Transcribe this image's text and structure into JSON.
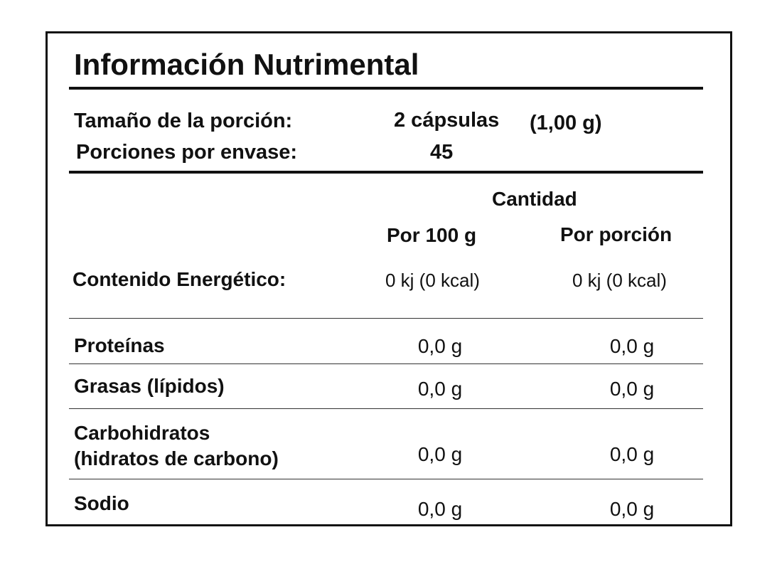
{
  "title": "Información Nutrimental",
  "serving": {
    "size_label": "Tamaño de la porción:",
    "size_value": "2 cápsulas",
    "size_weight": "(1,00 g)",
    "count_label": "Porciones por envase:",
    "count_value": "45"
  },
  "columns": {
    "group_header": "Cantidad",
    "per_100g": "Por 100 g",
    "per_portion": "Por porción"
  },
  "energy": {
    "label": "Contenido Energético:",
    "per_100g": "0 kj (0 kcal)",
    "per_portion": "0 kj (0 kcal)"
  },
  "nutrients": [
    {
      "label": "Proteínas",
      "per_100g": "0,0 g",
      "per_portion": "0,0 g"
    },
    {
      "label": "Grasas (lípidos)",
      "per_100g": "0,0 g",
      "per_portion": "0,0 g"
    },
    {
      "label_line1": "Carbohidratos",
      "label_line2": "(hidratos de carbono)",
      "per_100g": "0,0 g",
      "per_portion": "0,0 g"
    },
    {
      "label": "Sodio",
      "per_100g": "0,0 g",
      "per_portion": "0,0 g"
    }
  ]
}
